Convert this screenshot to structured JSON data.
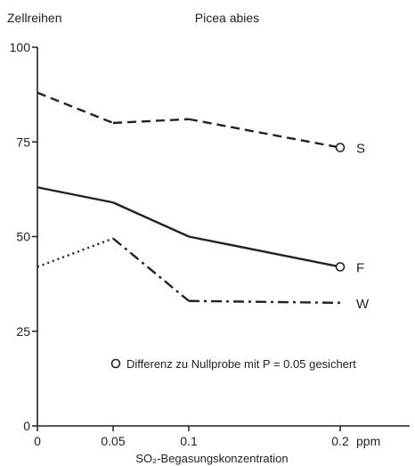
{
  "chart_data": {
    "type": "line",
    "title": "Picea abies",
    "ylabel": "Zellreihen",
    "xlabel": "SO₂-Begasungskonzentration",
    "x_unit": "ppm",
    "xlim": [
      0,
      0.2
    ],
    "ylim": [
      0,
      100
    ],
    "x_ticks": [
      0,
      0.05,
      0.1,
      0.2
    ],
    "x_tick_labels": [
      "0",
      "0.05",
      "0.1",
      "0.2"
    ],
    "y_ticks": [
      0,
      25,
      50,
      75,
      100
    ],
    "y_tick_labels": [
      "0",
      "25",
      "50",
      "75",
      "100"
    ],
    "grid": false,
    "note": "Differenz zu Nullprobe mit P = 0.05 gesichert",
    "series": [
      {
        "name": "S",
        "style": "dashed",
        "x": [
          0,
          0.05,
          0.1,
          0.2
        ],
        "y": [
          88,
          80,
          81,
          73.5
        ],
        "significant": [
          false,
          false,
          false,
          true
        ]
      },
      {
        "name": "F",
        "style": "solid",
        "x": [
          0,
          0.05,
          0.1,
          0.2
        ],
        "y": [
          63,
          59,
          50,
          42
        ],
        "significant": [
          false,
          false,
          false,
          true
        ]
      },
      {
        "name": "W",
        "style": "dotted-then-dashdot",
        "x": [
          0,
          0.05,
          0.1,
          0.2
        ],
        "y": [
          42,
          49.5,
          33,
          32.5
        ],
        "significant": [
          false,
          false,
          false,
          false
        ]
      }
    ]
  }
}
